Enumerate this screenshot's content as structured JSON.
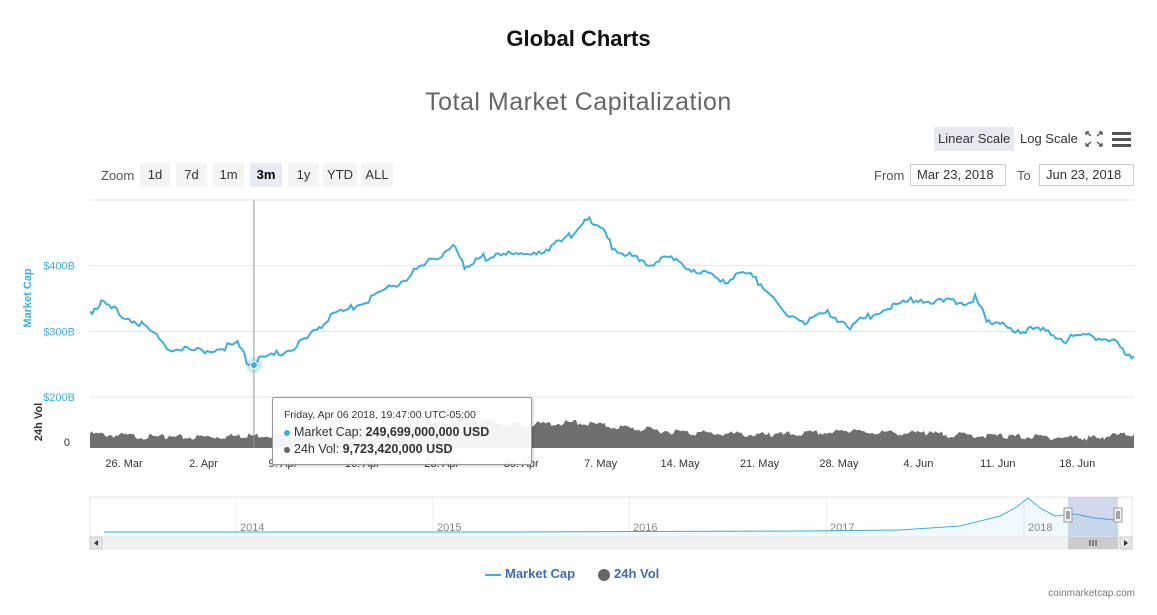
{
  "page": {
    "title": "Global Charts"
  },
  "toolbar": {
    "linear_scale": "Linear Scale",
    "log_scale": "Log Scale",
    "fullscreen_icon": "fullscreen-icon",
    "menu_icon": "hamburger-menu-icon"
  },
  "zoom": {
    "label": "Zoom",
    "buttons": [
      "1d",
      "7d",
      "1m",
      "3m",
      "1y",
      "YTD",
      "ALL"
    ],
    "active": "3m"
  },
  "range": {
    "from_label": "From",
    "from_value": "Mar 23, 2018",
    "to_label": "To",
    "to_value": "Jun 23, 2018"
  },
  "tooltip": {
    "header": "Friday, Apr 06 2018, 19:47:00 UTC-05:00",
    "market_cap_label": "Market Cap:",
    "market_cap_value": "249,699,000,000 USD",
    "vol_label": "24h Vol:",
    "vol_value": "9,723,420,000 USD"
  },
  "legend": {
    "market_cap": "Market Cap",
    "vol": "24h Vol"
  },
  "credits": "coinmarketcap.com",
  "colors": {
    "market_cap": "#3eaee1",
    "volume": "#6f6f6f",
    "legend_text": "#3d6db5",
    "axis_label": "#3eaee1"
  },
  "chart_data": {
    "type": "line",
    "title": "Total Market Capitalization",
    "ylabel": "Market Cap",
    "y_unit": "USD (billions)",
    "ylim": [
      200,
      500
    ],
    "y_ticks": [
      "$200B",
      "$300B",
      "$400B"
    ],
    "x_ticks": [
      "26. Mar",
      "2. Apr",
      "9. Apr",
      "16. Apr",
      "23. Apr",
      "30. Apr",
      "7. May",
      "14. May",
      "21. May",
      "28. May",
      "4. Jun",
      "11. Jun",
      "18. Jun"
    ],
    "x_range": [
      "2018-03-23",
      "2018-06-23"
    ],
    "series": [
      {
        "name": "Market Cap",
        "x": [
          "2018-03-23",
          "2018-03-24",
          "2018-03-26",
          "2018-03-28",
          "2018-03-30",
          "2018-04-01",
          "2018-04-03",
          "2018-04-05",
          "2018-04-06",
          "2018-04-08",
          "2018-04-10",
          "2018-04-12",
          "2018-04-13",
          "2018-04-15",
          "2018-04-17",
          "2018-04-19",
          "2018-04-21",
          "2018-04-23",
          "2018-04-24",
          "2018-04-25",
          "2018-04-26",
          "2018-04-28",
          "2018-04-30",
          "2018-05-02",
          "2018-05-04",
          "2018-05-05",
          "2018-05-06",
          "2018-05-07",
          "2018-05-08",
          "2018-05-10",
          "2018-05-11",
          "2018-05-13",
          "2018-05-15",
          "2018-05-16",
          "2018-05-18",
          "2018-05-20",
          "2018-05-22",
          "2018-05-23",
          "2018-05-25",
          "2018-05-27",
          "2018-05-29",
          "2018-05-31",
          "2018-06-02",
          "2018-06-04",
          "2018-06-06",
          "2018-06-08",
          "2018-06-09",
          "2018-06-10",
          "2018-06-11",
          "2018-06-13",
          "2018-06-15",
          "2018-06-17",
          "2018-06-19",
          "2018-06-21",
          "2018-06-22",
          "2018-06-23"
        ],
        "values": [
          330,
          342,
          325,
          305,
          275,
          270,
          272,
          282,
          250,
          262,
          275,
          300,
          322,
          335,
          352,
          372,
          395,
          418,
          430,
          398,
          408,
          420,
          415,
          425,
          440,
          460,
          468,
          460,
          428,
          410,
          402,
          410,
          395,
          390,
          378,
          388,
          360,
          330,
          315,
          328,
          308,
          325,
          340,
          350,
          345,
          345,
          350,
          320,
          310,
          302,
          300,
          288,
          292,
          288,
          272,
          262
        ]
      },
      {
        "name": "24h Vol",
        "unit": "USD (billions)",
        "ylim": [
          0,
          40
        ],
        "x": [
          "2018-03-23",
          "2018-03-30",
          "2018-04-06",
          "2018-04-13",
          "2018-04-20",
          "2018-04-25",
          "2018-04-30",
          "2018-05-05",
          "2018-05-10",
          "2018-05-15",
          "2018-05-22",
          "2018-05-29",
          "2018-06-05",
          "2018-06-12",
          "2018-06-19",
          "2018-06-23"
        ],
        "values": [
          11,
          8,
          9.7,
          12,
          16,
          22,
          18,
          20,
          15,
          12,
          10,
          13,
          11,
          9,
          8,
          11
        ]
      }
    ]
  },
  "navigator": {
    "year_labels": [
      "2014",
      "2015",
      "2016",
      "2017",
      "2018"
    ]
  }
}
